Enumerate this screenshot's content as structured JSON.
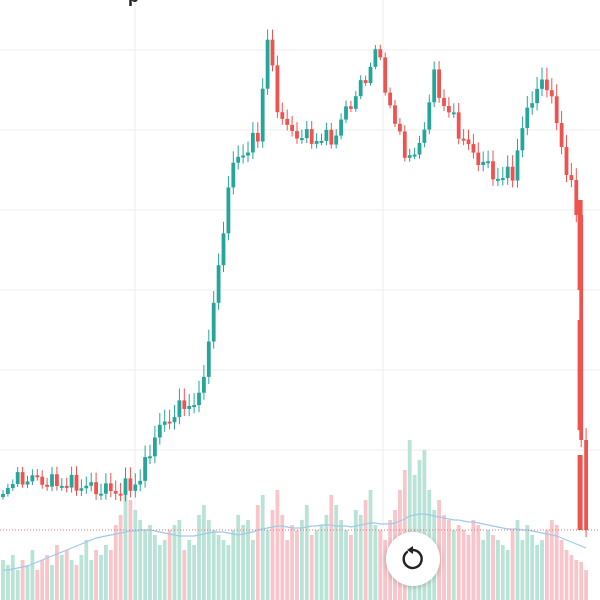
{
  "header": {
    "title_fragment": "p"
  },
  "controls": {
    "reset_icon": "rotate-ccw-icon"
  },
  "colors": {
    "up": "#26a69a",
    "down": "#ef5350",
    "up_volume": "#b9e3d6",
    "down_volume": "#f7c5ca",
    "grid": "#eeeeee",
    "volume_ma": "#9ecae8",
    "price_line": "#e57373"
  },
  "chart_data": {
    "type": "candlestick",
    "title": "",
    "xlabel": "",
    "ylabel": "",
    "grid": true,
    "current_price_line": true,
    "close_path": [
      {
        "i": 0,
        "v": 490
      },
      {
        "i": 2,
        "v": 482
      },
      {
        "i": 5,
        "v": 478
      },
      {
        "i": 10,
        "v": 483
      },
      {
        "i": 15,
        "v": 485
      },
      {
        "i": 20,
        "v": 490
      },
      {
        "i": 24,
        "v": 491
      },
      {
        "i": 28,
        "v": 480
      },
      {
        "i": 31,
        "v": 435
      },
      {
        "i": 34,
        "v": 418
      },
      {
        "i": 37,
        "v": 405
      },
      {
        "i": 40,
        "v": 402
      },
      {
        "i": 41,
        "v": 370
      },
      {
        "i": 42,
        "v": 340
      },
      {
        "i": 44,
        "v": 270
      },
      {
        "i": 46,
        "v": 185
      },
      {
        "i": 48,
        "v": 155
      },
      {
        "i": 50,
        "v": 150
      },
      {
        "i": 52,
        "v": 135
      },
      {
        "i": 54,
        "v": 40
      },
      {
        "i": 56,
        "v": 105
      },
      {
        "i": 58,
        "v": 130
      },
      {
        "i": 62,
        "v": 138
      },
      {
        "i": 65,
        "v": 140
      },
      {
        "i": 68,
        "v": 135
      },
      {
        "i": 70,
        "v": 110
      },
      {
        "i": 72,
        "v": 95
      },
      {
        "i": 74,
        "v": 80
      },
      {
        "i": 76,
        "v": 48
      },
      {
        "i": 78,
        "v": 85
      },
      {
        "i": 80,
        "v": 125
      },
      {
        "i": 82,
        "v": 150
      },
      {
        "i": 84,
        "v": 160
      },
      {
        "i": 86,
        "v": 125
      },
      {
        "i": 88,
        "v": 78
      },
      {
        "i": 90,
        "v": 105
      },
      {
        "i": 92,
        "v": 120
      },
      {
        "i": 94,
        "v": 140
      },
      {
        "i": 96,
        "v": 155
      },
      {
        "i": 98,
        "v": 162
      },
      {
        "i": 100,
        "v": 175
      },
      {
        "i": 102,
        "v": 178
      },
      {
        "i": 104,
        "v": 172
      },
      {
        "i": 106,
        "v": 130
      },
      {
        "i": 108,
        "v": 95
      },
      {
        "i": 110,
        "v": 85
      },
      {
        "i": 112,
        "v": 92
      },
      {
        "i": 114,
        "v": 155
      },
      {
        "i": 116,
        "v": 180
      },
      {
        "i": 117,
        "v": 215
      },
      {
        "i": 118,
        "v": 440
      },
      {
        "i": 119,
        "v": 530
      }
    ],
    "volumes": [
      40,
      35,
      45,
      30,
      40,
      35,
      50,
      30,
      40,
      45,
      35,
      55,
      45,
      50,
      40,
      35,
      45,
      60,
      40,
      50,
      45,
      55,
      50,
      75,
      85,
      110,
      100,
      90,
      80,
      70,
      75,
      65,
      55,
      60,
      70,
      75,
      80,
      50,
      60,
      55,
      85,
      95,
      80,
      70,
      65,
      60,
      55,
      70,
      85,
      75,
      80,
      60,
      95,
      105,
      70,
      90,
      110,
      85,
      60,
      75,
      70,
      80,
      95,
      65,
      70,
      75,
      85,
      105,
      95,
      80,
      70,
      65,
      90,
      85,
      100,
      110,
      75,
      70,
      60,
      80,
      90,
      110,
      130,
      160,
      125,
      140,
      150,
      110,
      90,
      100,
      85,
      80,
      70,
      75,
      70,
      65,
      80,
      75,
      60,
      70,
      65,
      60,
      55,
      50,
      70,
      80,
      60,
      75,
      65,
      55,
      60,
      70,
      80,
      75,
      60,
      50,
      45,
      40,
      38,
      30
    ],
    "volume_ma": [
      30,
      30,
      31,
      32,
      33,
      34,
      36,
      38,
      40,
      42,
      44,
      46,
      48,
      50,
      52,
      54,
      56,
      58,
      60,
      62,
      63,
      64,
      65,
      66,
      67,
      68,
      69,
      69,
      70,
      70,
      70,
      69,
      68,
      67,
      66,
      65,
      64,
      64,
      64,
      64,
      65,
      66,
      67,
      68,
      68,
      68,
      67,
      66,
      65,
      66,
      67,
      68,
      70,
      71,
      72,
      73,
      74,
      74,
      73,
      72,
      72,
      72,
      73,
      74,
      74,
      75,
      75,
      75,
      74,
      74,
      74,
      73,
      74,
      75,
      76,
      77,
      77,
      76,
      76,
      76,
      77,
      79,
      81,
      84,
      85,
      86,
      86,
      85,
      84,
      83,
      82,
      81,
      80,
      80,
      79,
      78,
      78,
      77,
      76,
      75,
      74,
      73,
      72,
      71,
      71,
      71,
      70,
      70,
      69,
      68,
      67,
      66,
      65,
      64,
      62,
      60,
      58,
      56,
      54,
      52
    ]
  }
}
